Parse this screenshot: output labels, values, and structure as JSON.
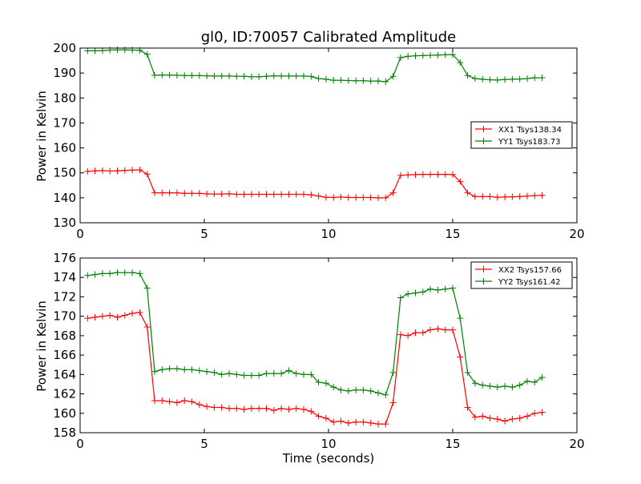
{
  "chart_data": [
    {
      "type": "line",
      "title": "gl0, ID:70057 Calibrated Amplitude",
      "xlabel": "",
      "ylabel": "Power in Kelvin",
      "xlim": [
        0,
        20
      ],
      "ylim": [
        130,
        200
      ],
      "xticks": [
        "0",
        "5",
        "10",
        "15",
        "20"
      ],
      "yticks": [
        "130",
        "140",
        "150",
        "160",
        "170",
        "180",
        "190",
        "200"
      ],
      "grid": false,
      "legend_position": "center-right",
      "series": [
        {
          "name": "XX1 Tsys138.34",
          "color": "#ff0000",
          "x": [
            0.3,
            0.6,
            0.9,
            1.2,
            1.5,
            1.8,
            2.1,
            2.4,
            2.7,
            3.0,
            3.3,
            3.6,
            3.9,
            4.2,
            4.5,
            4.8,
            5.1,
            5.4,
            5.7,
            6.0,
            6.3,
            6.6,
            6.9,
            7.2,
            7.5,
            7.8,
            8.1,
            8.4,
            8.7,
            9.0,
            9.3,
            9.6,
            9.9,
            10.2,
            10.5,
            10.8,
            11.1,
            11.4,
            11.7,
            12.0,
            12.3,
            12.6,
            12.9,
            13.2,
            13.5,
            13.8,
            14.1,
            14.4,
            14.7,
            15.0,
            15.3,
            15.6,
            15.9,
            16.2,
            16.5,
            16.8,
            17.1,
            17.4,
            17.7,
            18.0,
            18.3,
            18.6
          ],
          "y": [
            150.6,
            150.8,
            150.9,
            150.7,
            150.8,
            151.0,
            151.1,
            151.2,
            149.5,
            142.0,
            142.0,
            142.0,
            142.0,
            141.8,
            141.8,
            141.8,
            141.6,
            141.5,
            141.5,
            141.6,
            141.4,
            141.4,
            141.4,
            141.4,
            141.4,
            141.4,
            141.4,
            141.4,
            141.4,
            141.4,
            141.2,
            140.7,
            140.2,
            140.1,
            140.3,
            140.1,
            140.1,
            140.1,
            140.1,
            140.0,
            140.0,
            142.0,
            149.0,
            149.2,
            149.3,
            149.4,
            149.4,
            149.4,
            149.4,
            149.3,
            146.5,
            142.0,
            140.5,
            140.5,
            140.5,
            140.2,
            140.3,
            140.4,
            140.5,
            140.7,
            140.9,
            141.0
          ]
        },
        {
          "name": "YY1 Tsys183.73",
          "color": "#008000",
          "x": [
            0.3,
            0.6,
            0.9,
            1.2,
            1.5,
            1.8,
            2.1,
            2.4,
            2.7,
            3.0,
            3.3,
            3.6,
            3.9,
            4.2,
            4.5,
            4.8,
            5.1,
            5.4,
            5.7,
            6.0,
            6.3,
            6.6,
            6.9,
            7.2,
            7.5,
            7.8,
            8.1,
            8.4,
            8.7,
            9.0,
            9.3,
            9.6,
            9.9,
            10.2,
            10.5,
            10.8,
            11.1,
            11.4,
            11.7,
            12.0,
            12.3,
            12.6,
            12.9,
            13.2,
            13.5,
            13.8,
            14.1,
            14.4,
            14.7,
            15.0,
            15.3,
            15.6,
            15.9,
            16.2,
            16.5,
            16.8,
            17.1,
            17.4,
            17.7,
            18.0,
            18.3,
            18.6
          ],
          "y": [
            198.9,
            198.9,
            199.0,
            199.2,
            199.3,
            199.3,
            199.2,
            199.1,
            197.5,
            189.1,
            189.2,
            189.2,
            189.1,
            189.0,
            189.0,
            189.0,
            188.9,
            188.8,
            188.8,
            188.8,
            188.7,
            188.7,
            188.5,
            188.5,
            188.7,
            188.9,
            188.8,
            188.8,
            188.8,
            188.8,
            188.6,
            187.8,
            187.5,
            187.1,
            187.1,
            187.0,
            186.9,
            186.9,
            186.8,
            186.8,
            186.5,
            188.7,
            196.2,
            196.7,
            196.9,
            197.0,
            197.1,
            197.2,
            197.3,
            197.4,
            194.2,
            189.0,
            187.8,
            187.5,
            187.3,
            187.2,
            187.4,
            187.5,
            187.6,
            187.8,
            188.1,
            188.1
          ]
        }
      ]
    },
    {
      "type": "line",
      "title": "",
      "xlabel": "Time (seconds)",
      "ylabel": "Power in Kelvin",
      "xlim": [
        0,
        20
      ],
      "ylim": [
        158,
        176
      ],
      "xticks": [
        "0",
        "5",
        "10",
        "15",
        "20"
      ],
      "yticks": [
        "158",
        "160",
        "162",
        "164",
        "166",
        "168",
        "170",
        "172",
        "174",
        "176"
      ],
      "grid": false,
      "legend_position": "top-right",
      "series": [
        {
          "name": "XX2 Tsys157.66",
          "color": "#ff0000",
          "x": [
            0.3,
            0.6,
            0.9,
            1.2,
            1.5,
            1.8,
            2.1,
            2.4,
            2.7,
            3.0,
            3.3,
            3.6,
            3.9,
            4.2,
            4.5,
            4.8,
            5.1,
            5.4,
            5.7,
            6.0,
            6.3,
            6.6,
            6.9,
            7.2,
            7.5,
            7.8,
            8.1,
            8.4,
            8.7,
            9.0,
            9.3,
            9.6,
            9.9,
            10.2,
            10.5,
            10.8,
            11.1,
            11.4,
            11.7,
            12.0,
            12.3,
            12.6,
            12.9,
            13.2,
            13.5,
            13.8,
            14.1,
            14.4,
            14.7,
            15.0,
            15.3,
            15.6,
            15.9,
            16.2,
            16.5,
            16.8,
            17.1,
            17.4,
            17.7,
            18.0,
            18.3,
            18.6
          ],
          "y": [
            169.8,
            169.9,
            170.0,
            170.1,
            169.9,
            170.1,
            170.3,
            170.4,
            168.9,
            161.3,
            161.3,
            161.2,
            161.1,
            161.3,
            161.2,
            160.9,
            160.7,
            160.6,
            160.6,
            160.5,
            160.5,
            160.4,
            160.5,
            160.5,
            160.5,
            160.3,
            160.5,
            160.4,
            160.5,
            160.4,
            160.2,
            159.7,
            159.5,
            159.1,
            159.2,
            159.0,
            159.1,
            159.1,
            159.0,
            158.9,
            158.9,
            161.1,
            168.1,
            168.0,
            168.3,
            168.3,
            168.6,
            168.7,
            168.6,
            168.6,
            165.8,
            160.6,
            159.6,
            159.7,
            159.5,
            159.4,
            159.2,
            159.4,
            159.5,
            159.7,
            160.0,
            160.1
          ]
        },
        {
          "name": "YY2 Tsys161.42",
          "color": "#008000",
          "x": [
            0.3,
            0.6,
            0.9,
            1.2,
            1.5,
            1.8,
            2.1,
            2.4,
            2.7,
            3.0,
            3.3,
            3.6,
            3.9,
            4.2,
            4.5,
            4.8,
            5.1,
            5.4,
            5.7,
            6.0,
            6.3,
            6.6,
            6.9,
            7.2,
            7.5,
            7.8,
            8.1,
            8.4,
            8.7,
            9.0,
            9.3,
            9.6,
            9.9,
            10.2,
            10.5,
            10.8,
            11.1,
            11.4,
            11.7,
            12.0,
            12.3,
            12.6,
            12.9,
            13.2,
            13.5,
            13.8,
            14.1,
            14.4,
            14.7,
            15.0,
            15.3,
            15.6,
            15.9,
            16.2,
            16.5,
            16.8,
            17.1,
            17.4,
            17.7,
            18.0,
            18.3,
            18.6
          ],
          "y": [
            174.2,
            174.3,
            174.4,
            174.4,
            174.5,
            174.5,
            174.5,
            174.4,
            172.9,
            164.3,
            164.5,
            164.6,
            164.6,
            164.5,
            164.5,
            164.4,
            164.3,
            164.2,
            164.0,
            164.1,
            164.0,
            163.9,
            163.9,
            163.9,
            164.1,
            164.1,
            164.1,
            164.4,
            164.1,
            164.0,
            164.0,
            163.2,
            163.1,
            162.7,
            162.4,
            162.3,
            162.4,
            162.4,
            162.3,
            162.1,
            161.9,
            164.2,
            171.9,
            172.3,
            172.4,
            172.5,
            172.8,
            172.7,
            172.8,
            172.9,
            169.8,
            164.2,
            163.1,
            162.9,
            162.8,
            162.7,
            162.8,
            162.7,
            162.9,
            163.3,
            163.2,
            163.7
          ]
        }
      ]
    }
  ]
}
